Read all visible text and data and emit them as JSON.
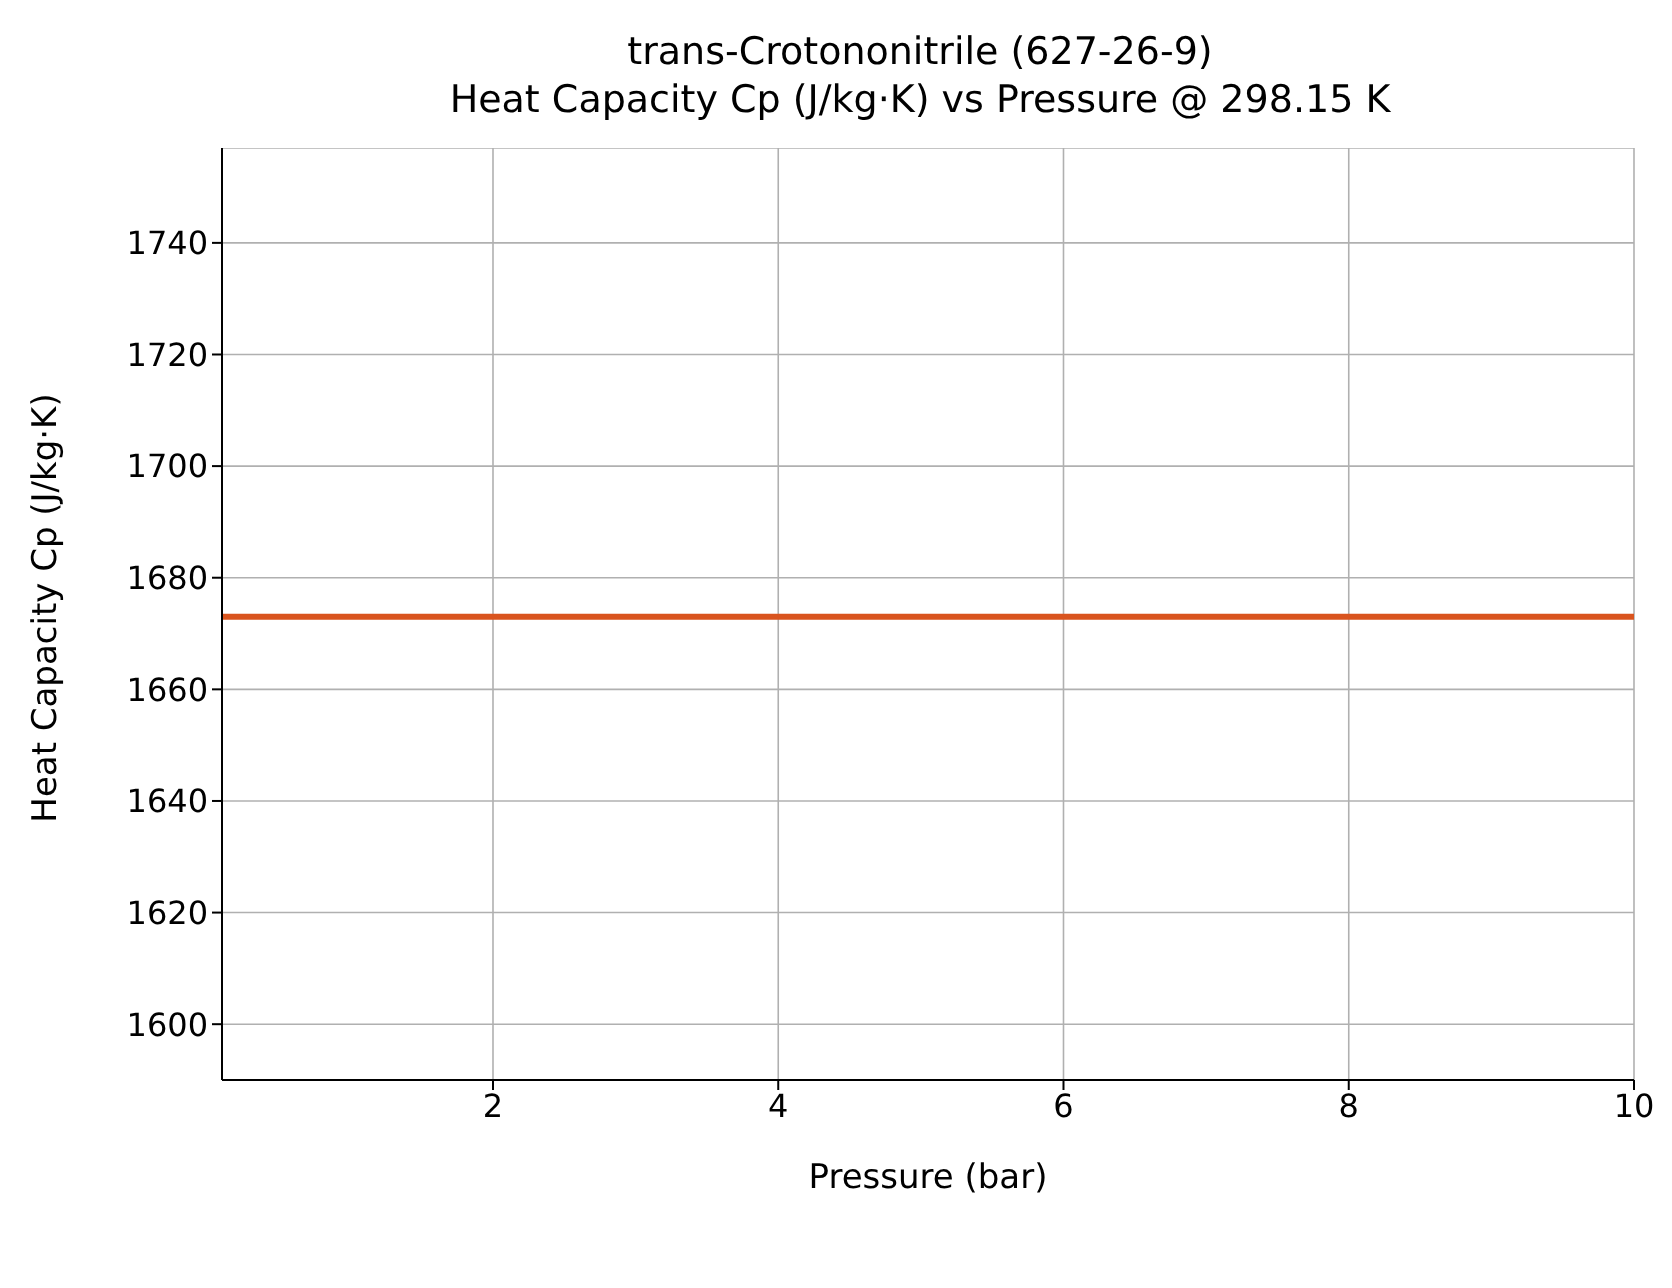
{
  "chart_data": {
    "type": "line",
    "title": "trans-Crotononitrile (627-26-9)\nHeat Capacity Cp (J/kg·K) vs Pressure @ 298.15 K",
    "xlabel": "Pressure (bar)",
    "ylabel": "Heat Capacity Cp (J/kg·K)",
    "x": [
      0.1,
      10
    ],
    "series": [
      {
        "color": "#d9541e",
        "values": [
          1673,
          1673
        ]
      }
    ],
    "xlim": [
      0.1,
      10
    ],
    "xticks": [
      2,
      4,
      6,
      8,
      10
    ],
    "ylim": [
      1590,
      1757
    ],
    "yticks": [
      1600,
      1620,
      1640,
      1660,
      1680,
      1700,
      1720,
      1740
    ],
    "grid": true,
    "marker": "none",
    "line_style": "solid"
  }
}
